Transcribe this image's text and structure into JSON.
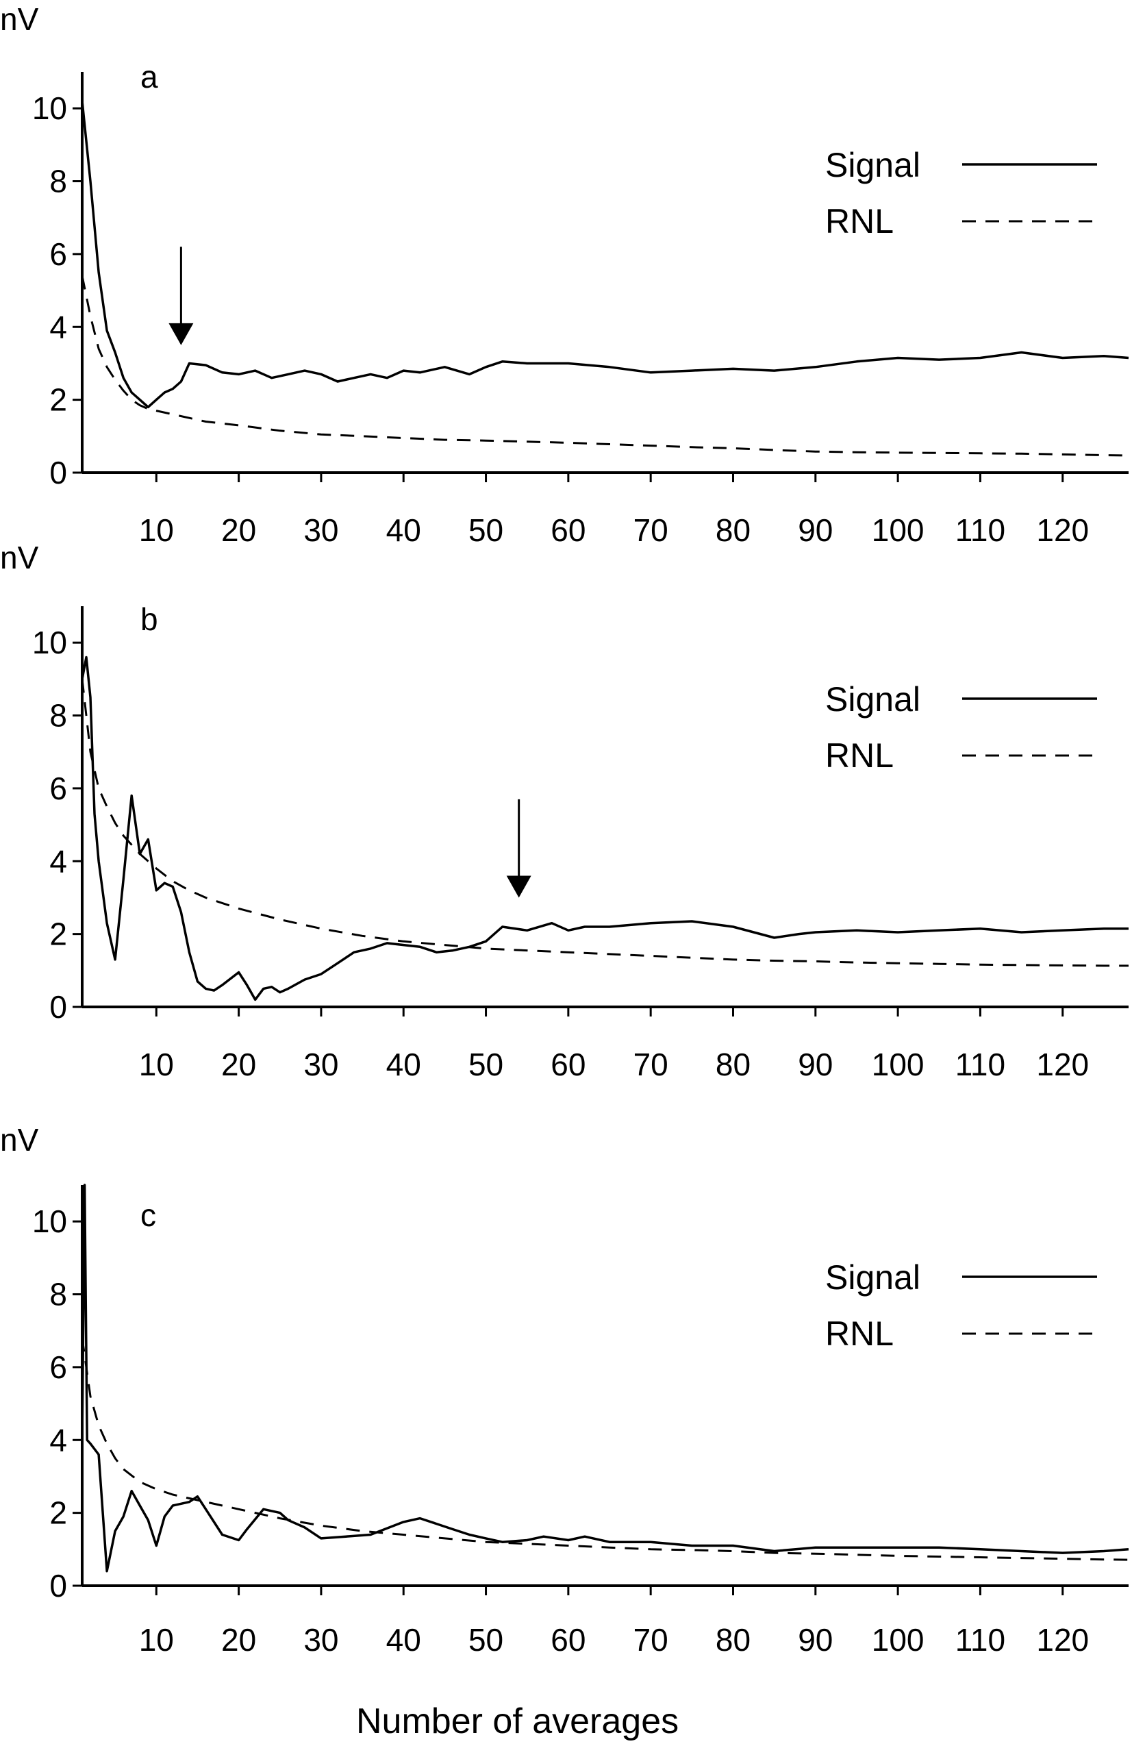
{
  "chart_data": [
    {
      "type": "line",
      "panel_label": "a",
      "ylabel": "nV",
      "xlabel": "",
      "xlim": [
        1,
        128
      ],
      "ylim": [
        0,
        11
      ],
      "yticks": [
        0,
        2,
        4,
        6,
        8,
        10
      ],
      "xticks": [
        10,
        20,
        30,
        40,
        50,
        60,
        70,
        80,
        90,
        100,
        110,
        120
      ],
      "legend": {
        "position": "top-right",
        "entries": [
          "Signal",
          "RNL"
        ]
      },
      "arrow": {
        "x": 13,
        "y_from": 6.2,
        "y_to": 3.5
      },
      "series": [
        {
          "name": "Signal",
          "style": "solid",
          "x": [
            1,
            2,
            3,
            4,
            5,
            6,
            7,
            8,
            9,
            10,
            11,
            12,
            13,
            14,
            16,
            18,
            20,
            22,
            24,
            26,
            28,
            30,
            32,
            34,
            36,
            38,
            40,
            42,
            45,
            48,
            50,
            52,
            55,
            60,
            65,
            70,
            75,
            80,
            85,
            90,
            95,
            100,
            105,
            110,
            115,
            120,
            125,
            128
          ],
          "y": [
            10.2,
            8.0,
            5.5,
            3.9,
            3.3,
            2.6,
            2.2,
            2.0,
            1.8,
            2.0,
            2.2,
            2.3,
            2.5,
            3.0,
            2.95,
            2.75,
            2.7,
            2.8,
            2.6,
            2.7,
            2.8,
            2.7,
            2.5,
            2.6,
            2.7,
            2.6,
            2.8,
            2.75,
            2.9,
            2.7,
            2.9,
            3.05,
            3.0,
            3.0,
            2.9,
            2.75,
            2.8,
            2.85,
            2.8,
            2.9,
            3.05,
            3.15,
            3.1,
            3.15,
            3.3,
            3.15,
            3.2,
            3.15
          ]
        },
        {
          "name": "RNL",
          "style": "dashed",
          "x": [
            1,
            2,
            3,
            4,
            5,
            6,
            7,
            8,
            9,
            10,
            12,
            14,
            16,
            18,
            20,
            25,
            30,
            35,
            40,
            45,
            50,
            55,
            60,
            65,
            70,
            75,
            80,
            85,
            90,
            95,
            100,
            105,
            110,
            115,
            120,
            125,
            128
          ],
          "y": [
            5.4,
            4.3,
            3.4,
            2.9,
            2.55,
            2.25,
            2.0,
            1.85,
            1.75,
            1.7,
            1.6,
            1.5,
            1.4,
            1.35,
            1.3,
            1.15,
            1.05,
            1.0,
            0.95,
            0.9,
            0.88,
            0.85,
            0.82,
            0.78,
            0.74,
            0.7,
            0.67,
            0.62,
            0.58,
            0.56,
            0.55,
            0.54,
            0.53,
            0.52,
            0.5,
            0.48,
            0.47
          ]
        }
      ]
    },
    {
      "type": "line",
      "panel_label": "b",
      "ylabel": "nV",
      "xlabel": "",
      "xlim": [
        1,
        128
      ],
      "ylim": [
        0,
        11
      ],
      "yticks": [
        0,
        2,
        4,
        6,
        8,
        10
      ],
      "xticks": [
        10,
        20,
        30,
        40,
        50,
        60,
        70,
        80,
        90,
        100,
        110,
        120
      ],
      "legend": {
        "position": "top-right",
        "entries": [
          "Signal",
          "RNL"
        ]
      },
      "arrow": {
        "x": 54,
        "y_from": 5.7,
        "y_to": 3.0
      },
      "series": [
        {
          "name": "Signal",
          "style": "solid",
          "x": [
            1,
            1.5,
            2,
            2.5,
            3,
            4,
            5,
            6,
            7,
            8,
            9,
            10,
            11,
            12,
            13,
            14,
            15,
            16,
            17,
            18,
            20,
            21,
            22,
            23,
            24,
            25,
            26,
            28,
            30,
            32,
            34,
            36,
            38,
            40,
            42,
            44,
            46,
            48,
            50,
            52,
            55,
            58,
            60,
            62,
            65,
            70,
            75,
            80,
            85,
            88,
            90,
            95,
            100,
            105,
            110,
            115,
            120,
            125,
            128
          ],
          "y": [
            9.0,
            9.6,
            8.5,
            5.3,
            4.0,
            2.3,
            1.3,
            3.5,
            5.8,
            4.2,
            4.6,
            3.2,
            3.4,
            3.3,
            2.6,
            1.5,
            0.7,
            0.5,
            0.45,
            0.6,
            0.95,
            0.6,
            0.2,
            0.5,
            0.55,
            0.4,
            0.5,
            0.75,
            0.9,
            1.2,
            1.5,
            1.6,
            1.75,
            1.7,
            1.65,
            1.5,
            1.55,
            1.65,
            1.8,
            2.2,
            2.1,
            2.3,
            2.1,
            2.2,
            2.2,
            2.3,
            2.35,
            2.2,
            1.9,
            2.0,
            2.05,
            2.1,
            2.05,
            2.1,
            2.15,
            2.05,
            2.1,
            2.15,
            2.15
          ]
        },
        {
          "name": "RNL",
          "style": "dashed",
          "x": [
            1,
            2,
            3,
            4,
            5,
            6,
            8,
            10,
            12,
            14,
            16,
            18,
            20,
            25,
            30,
            35,
            40,
            45,
            50,
            55,
            60,
            65,
            70,
            75,
            80,
            85,
            90,
            95,
            100,
            105,
            110,
            115,
            120,
            125,
            128
          ],
          "y": [
            9.0,
            7.0,
            6.0,
            5.5,
            5.05,
            4.7,
            4.2,
            3.8,
            3.45,
            3.2,
            3.0,
            2.85,
            2.7,
            2.4,
            2.15,
            1.95,
            1.8,
            1.7,
            1.6,
            1.55,
            1.5,
            1.45,
            1.4,
            1.35,
            1.3,
            1.27,
            1.25,
            1.22,
            1.2,
            1.18,
            1.16,
            1.15,
            1.14,
            1.13,
            1.13
          ]
        }
      ]
    },
    {
      "type": "line",
      "panel_label": "c",
      "ylabel": "nV",
      "xlabel": "Number of averages",
      "xlim": [
        1,
        128
      ],
      "ylim": [
        0,
        11
      ],
      "yticks": [
        0,
        2,
        4,
        6,
        8,
        10
      ],
      "xticks": [
        10,
        20,
        30,
        40,
        50,
        60,
        70,
        80,
        90,
        100,
        110,
        120
      ],
      "legend": {
        "position": "top-right",
        "entries": [
          "Signal",
          "RNL"
        ]
      },
      "series": [
        {
          "name": "Signal",
          "style": "solid",
          "x": [
            1,
            1.3,
            1.6,
            2,
            3,
            4,
            5,
            6,
            7,
            8,
            9,
            10,
            11,
            12,
            14,
            15,
            16,
            18,
            20,
            21,
            23,
            25,
            26,
            28,
            30,
            33,
            36,
            40,
            42,
            44,
            46,
            48,
            50,
            52,
            55,
            57,
            60,
            62,
            65,
            70,
            75,
            80,
            85,
            90,
            95,
            100,
            105,
            110,
            115,
            120,
            125,
            128
          ],
          "y": [
            4.1,
            11.0,
            4.0,
            3.9,
            3.6,
            0.4,
            1.5,
            1.9,
            2.6,
            2.2,
            1.8,
            1.1,
            1.9,
            2.2,
            2.3,
            2.45,
            2.1,
            1.4,
            1.25,
            1.55,
            2.1,
            2.0,
            1.8,
            1.6,
            1.3,
            1.35,
            1.4,
            1.75,
            1.85,
            1.7,
            1.55,
            1.4,
            1.3,
            1.2,
            1.25,
            1.35,
            1.25,
            1.35,
            1.2,
            1.2,
            1.1,
            1.1,
            0.95,
            1.05,
            1.05,
            1.05,
            1.05,
            1.0,
            0.95,
            0.9,
            0.95,
            1.0
          ]
        },
        {
          "name": "RNL",
          "style": "dashed",
          "x": [
            1,
            2,
            3,
            4,
            5,
            6,
            8,
            10,
            12,
            14,
            16,
            18,
            20,
            25,
            30,
            35,
            40,
            45,
            50,
            55,
            60,
            65,
            70,
            75,
            80,
            85,
            90,
            95,
            100,
            105,
            110,
            115,
            120,
            125,
            128
          ],
          "y": [
            6.8,
            5.2,
            4.4,
            3.9,
            3.5,
            3.2,
            2.85,
            2.65,
            2.5,
            2.4,
            2.3,
            2.2,
            2.1,
            1.85,
            1.65,
            1.5,
            1.4,
            1.3,
            1.2,
            1.15,
            1.1,
            1.05,
            1.0,
            0.98,
            0.95,
            0.9,
            0.88,
            0.85,
            0.82,
            0.8,
            0.78,
            0.76,
            0.74,
            0.72,
            0.71
          ]
        }
      ]
    }
  ]
}
